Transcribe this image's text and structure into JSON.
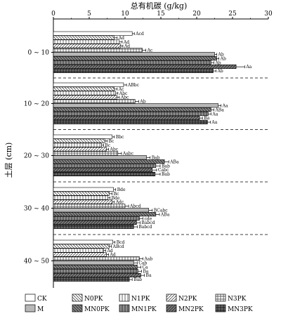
{
  "chart_data": {
    "type": "bar",
    "orientation": "horizontal",
    "title": "总有机碳 (g/kg)",
    "xlabel": "总有机碳 (g/kg)",
    "ylabel": "土层 (cm)",
    "xlim": [
      0,
      30
    ],
    "xticks": [
      "0",
      "5",
      "10",
      "15",
      "20",
      "25",
      "30"
    ],
    "grid": false,
    "legend_position": "bottom",
    "categories": [
      "0 ~ 10",
      "10 ~ 20",
      "20 ~ 30",
      "30 ~ 40",
      "40 ~ 50"
    ],
    "series": [
      {
        "name": "CK",
        "pattern": "blank",
        "values": [
          11.0,
          9.8,
          8.2,
          8.4,
          8.3
        ],
        "errors": [
          0.3,
          0.4,
          0.3,
          0.3,
          0.3
        ],
        "labels": [
          "Acd",
          "ABbc",
          "Bbc",
          "Bde",
          "Bcd"
        ]
      },
      {
        "name": "N0PK",
        "pattern": "back",
        "values": [
          8.5,
          8.5,
          7.2,
          7.8,
          7.8
        ],
        "errors": [
          0.4,
          0.4,
          0.3,
          0.4,
          0.3
        ],
        "labels": [
          "Ad",
          "Ac",
          "Bc",
          "Bc",
          "ABcd"
        ]
      },
      {
        "name": "N1PK",
        "pattern": "vert",
        "values": [
          9.2,
          8.7,
          6.7,
          7.6,
          7.0
        ],
        "errors": [
          0.4,
          0.3,
          0.3,
          0.3,
          0.3
        ],
        "labels": [
          "Ad",
          "Abc",
          "Bc",
          "Bde",
          "Ad"
        ]
      },
      {
        "name": "N2PK",
        "pattern": "fwd",
        "values": [
          9.4,
          8.9,
          7.4,
          8.2,
          7.4
        ],
        "errors": [
          0.3,
          0.3,
          0.3,
          0.3,
          0.3
        ],
        "labels": [
          "Ad",
          "Abc",
          "Abc",
          "Adc",
          "Ad"
        ]
      },
      {
        "name": "N3PK",
        "pattern": "grid",
        "values": [
          12.4,
          11.4,
          9.0,
          10.0,
          12.0
        ],
        "errors": [
          0.5,
          0.5,
          0.5,
          0.5,
          0.5
        ],
        "labels": [
          "Ac",
          "Ab",
          "Aabc",
          "Abcd",
          "Aab"
        ]
      },
      {
        "name": "M",
        "pattern": "solid",
        "values": [
          22.5,
          23.0,
          13.0,
          13.3,
          11.2
        ],
        "errors": [
          0.3,
          0.4,
          0.5,
          0.5,
          0.5
        ],
        "labels": [
          "Ab",
          "Aa",
          "Bab",
          "BCabc",
          "Cab"
        ]
      },
      {
        "name": "MN0PK",
        "pattern": "darkback",
        "values": [
          22.8,
          22.0,
          15.5,
          14.3,
          11.7
        ],
        "errors": [
          0.3,
          0.4,
          0.6,
          0.5,
          0.5
        ],
        "labels": [
          "Ab",
          "ABa",
          "ABa",
          "ABa",
          "Ca"
        ]
      },
      {
        "name": "MN1PK",
        "pattern": "darkvert",
        "values": [
          22.0,
          21.6,
          14.3,
          12.0,
          11.8
        ],
        "errors": [
          0.4,
          0.4,
          0.6,
          0.5,
          0.5
        ],
        "labels": [
          "Ab",
          "Aa",
          "Bab",
          "cde",
          "Ba"
        ]
      },
      {
        "name": "MN2PK",
        "pattern": "darkfwd",
        "values": [
          25.5,
          20.4,
          13.8,
          11.6,
          12.2
        ],
        "errors": [
          1.2,
          0.4,
          0.6,
          0.5,
          0.5
        ],
        "labels": [
          "Aa",
          "Ba",
          "Cabc",
          "Babcd",
          "Ba"
        ]
      },
      {
        "name": "MN3PK",
        "pattern": "darkgrid",
        "values": [
          22.3,
          21.5,
          14.2,
          11.2,
          10.6
        ],
        "errors": [
          0.4,
          0.4,
          0.7,
          0.5,
          0.4
        ],
        "labels": [
          "Ab",
          "Aa",
          "Bab",
          "Babcd",
          "Bab"
        ]
      }
    ]
  }
}
